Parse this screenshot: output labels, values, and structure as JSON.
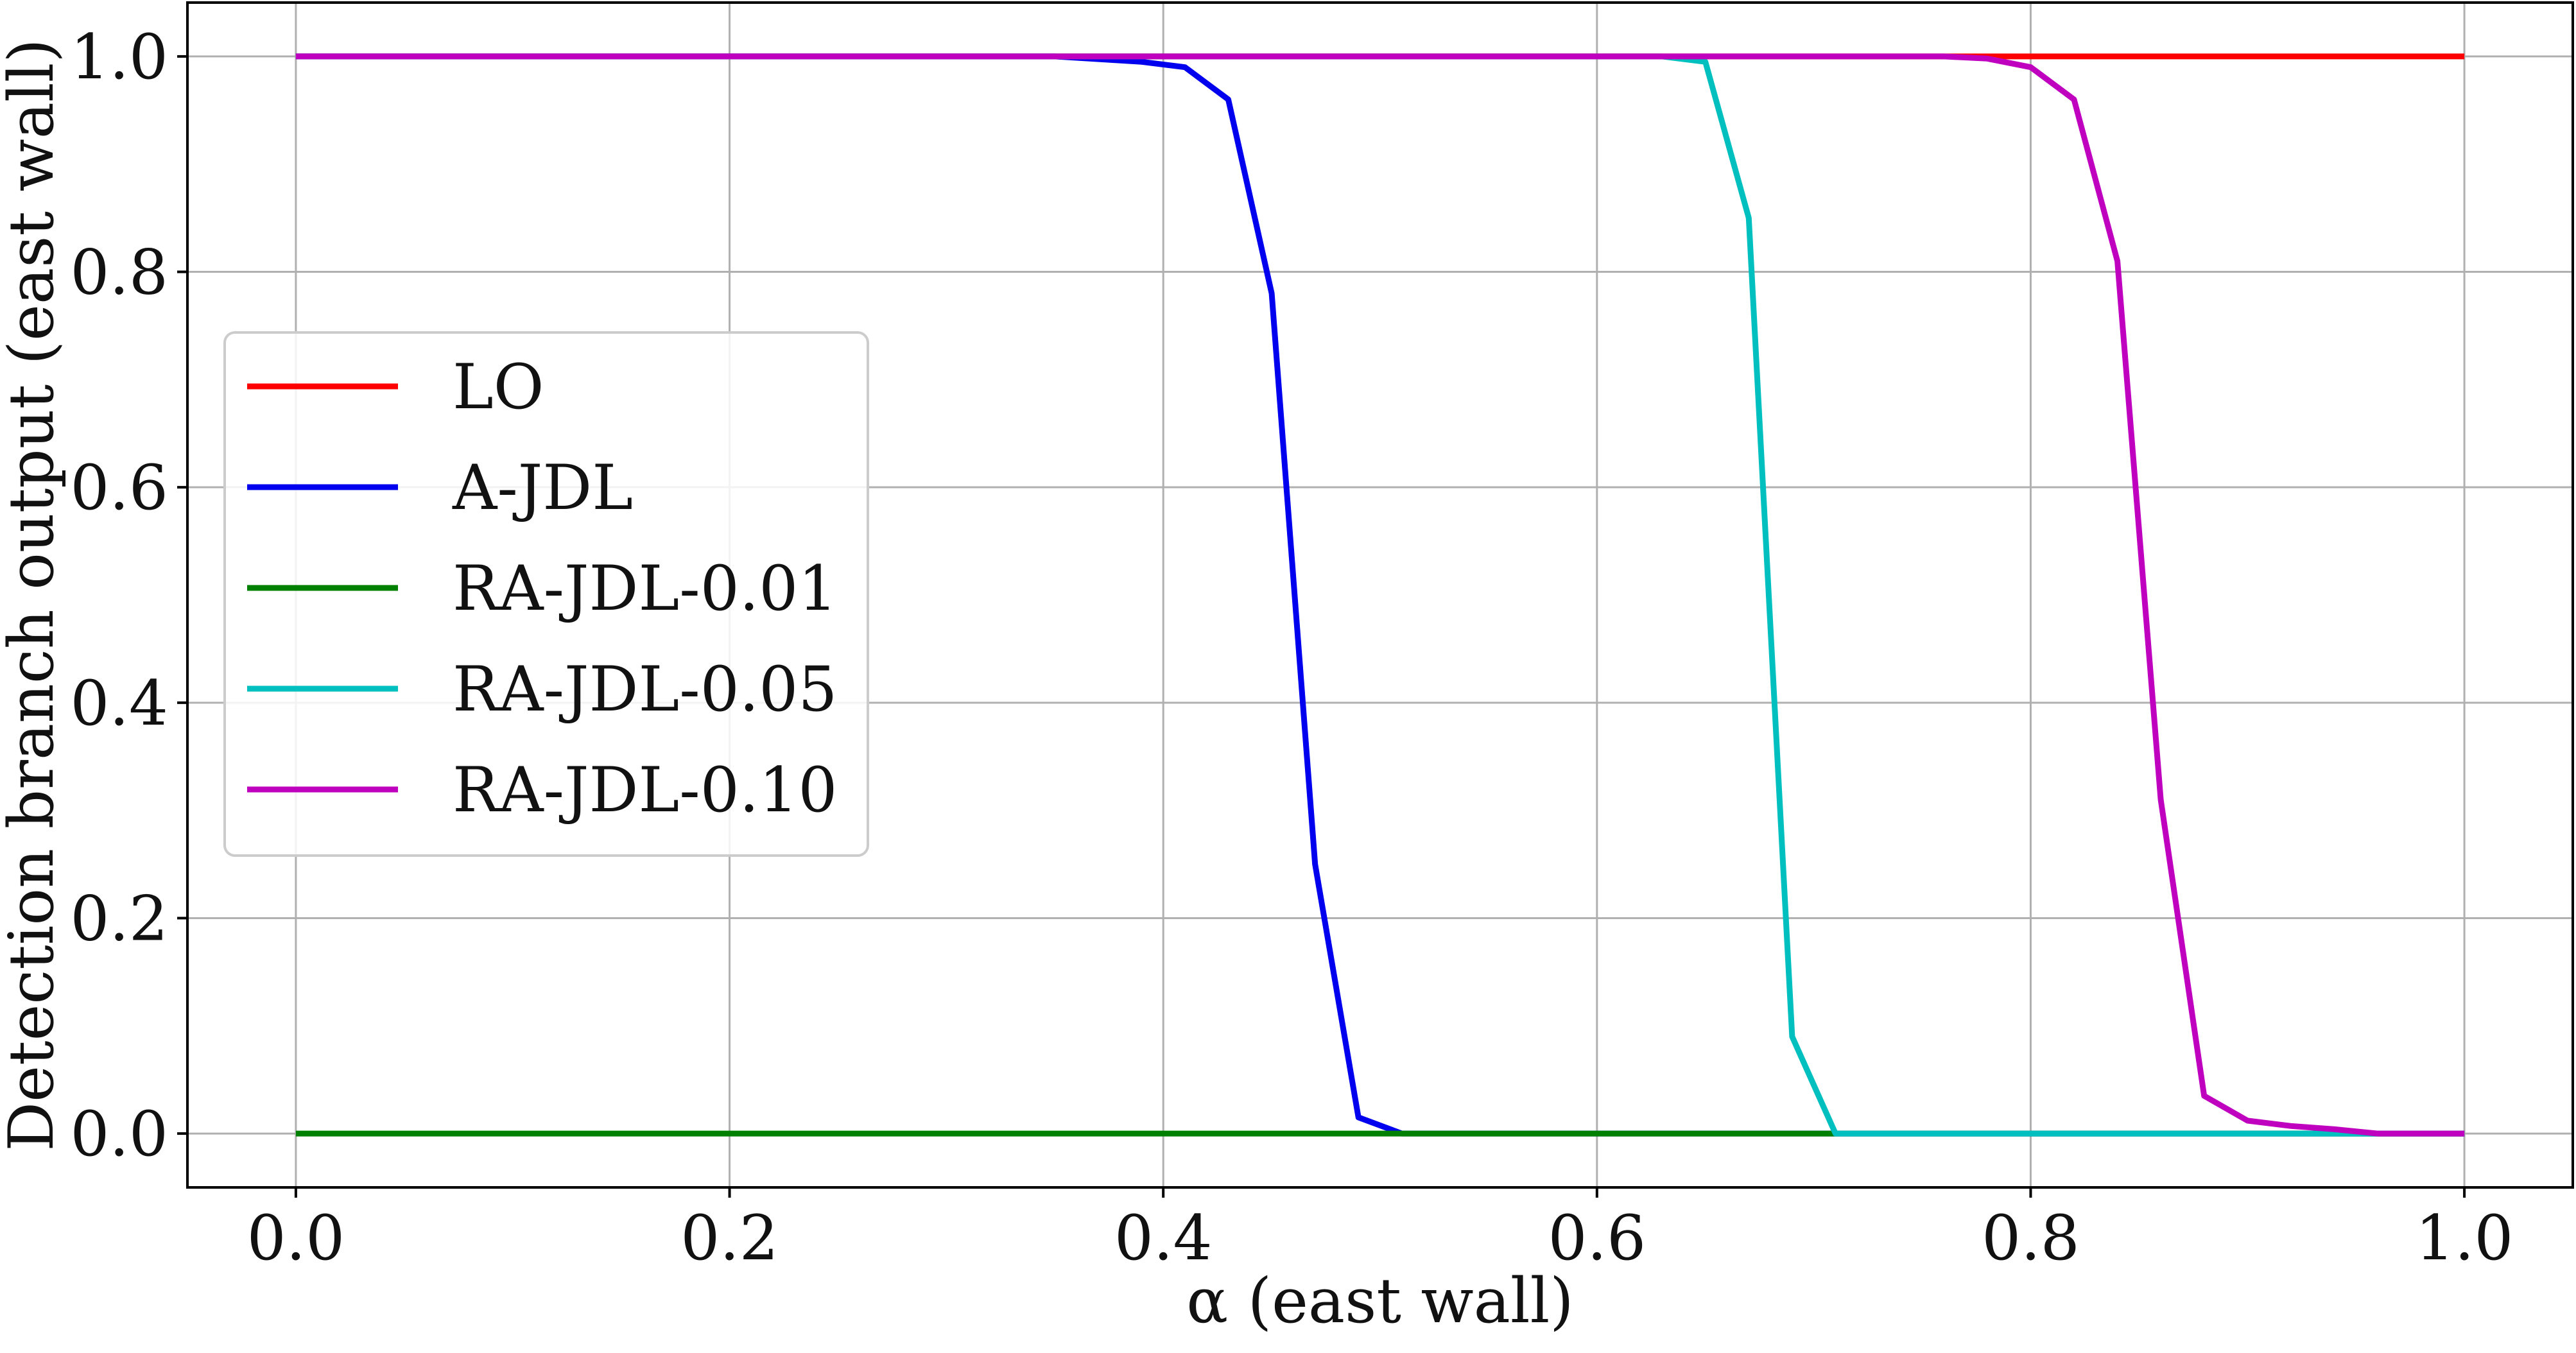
{
  "chart_data": {
    "type": "line",
    "title": "",
    "xlabel": "α (east wall)",
    "ylabel": "Detection branch output (east wall)",
    "xlim": [
      -0.05,
      1.05
    ],
    "ylim": [
      -0.05,
      1.05
    ],
    "xticks": [
      0.0,
      0.2,
      0.4,
      0.6,
      0.8,
      1.0
    ],
    "yticks": [
      0.0,
      0.2,
      0.4,
      0.6,
      0.8,
      1.0
    ],
    "xtick_labels": [
      "0.0",
      "0.2",
      "0.4",
      "0.6",
      "0.8",
      "1.0"
    ],
    "ytick_labels": [
      "0.0",
      "0.2",
      "0.4",
      "0.6",
      "0.8",
      "1.0"
    ],
    "grid": true,
    "legend_position": "center-left",
    "series": [
      {
        "name": "LO",
        "color": "#ff0000",
        "x": [
          0.0,
          1.0
        ],
        "y": [
          1.0,
          1.0
        ]
      },
      {
        "name": "A-JDL",
        "color": "#0000ee",
        "x": [
          0.0,
          0.35,
          0.39,
          0.41,
          0.43,
          0.45,
          0.47,
          0.49,
          0.51,
          1.0
        ],
        "y": [
          1.0,
          1.0,
          0.995,
          0.99,
          0.96,
          0.78,
          0.25,
          0.015,
          0.0,
          0.0
        ]
      },
      {
        "name": "RA-JDL-0.01",
        "color": "#008000",
        "x": [
          0.0,
          1.0
        ],
        "y": [
          0.0,
          0.0
        ]
      },
      {
        "name": "RA-JDL-0.05",
        "color": "#00bfbf",
        "x": [
          0.0,
          0.63,
          0.65,
          0.67,
          0.69,
          0.71,
          1.0
        ],
        "y": [
          1.0,
          1.0,
          0.995,
          0.85,
          0.09,
          0.0,
          0.0
        ]
      },
      {
        "name": "RA-JDL-0.10",
        "color": "#bf00bf",
        "x": [
          0.0,
          0.76,
          0.78,
          0.8,
          0.82,
          0.84,
          0.86,
          0.88,
          0.9,
          0.92,
          0.94,
          0.96,
          1.0
        ],
        "y": [
          1.0,
          1.0,
          0.998,
          0.99,
          0.96,
          0.81,
          0.31,
          0.035,
          0.012,
          0.007,
          0.004,
          0.0,
          0.0
        ]
      }
    ]
  }
}
